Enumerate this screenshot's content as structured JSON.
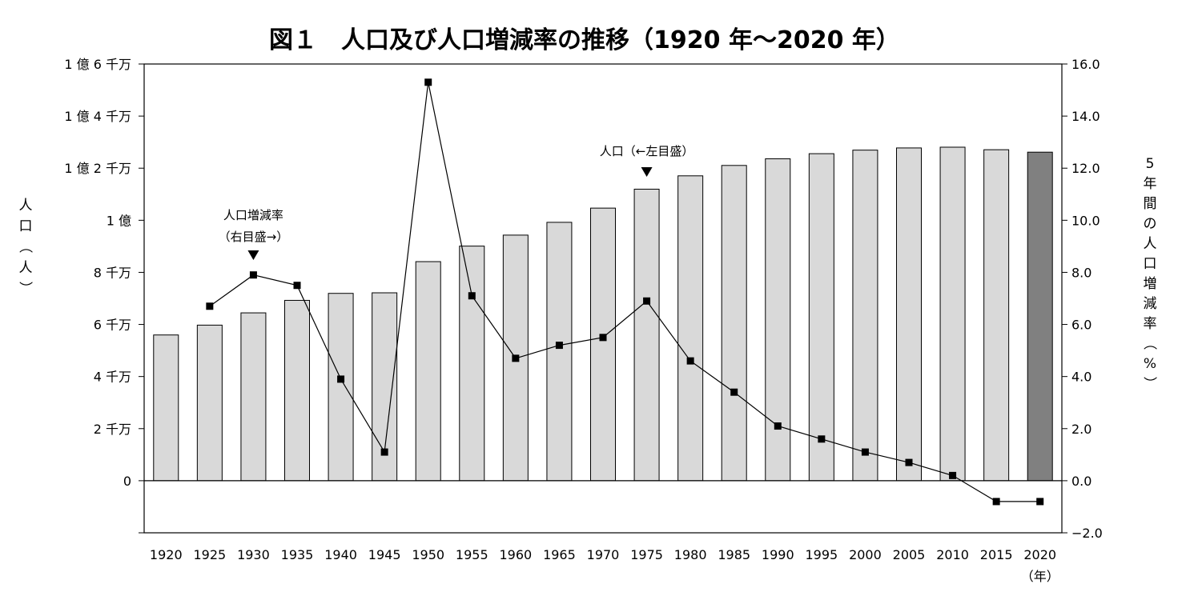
{
  "chart_data": {
    "type": "bar+line",
    "title": "図１　人口及び人口増減率の推移（1920 年～2020 年）",
    "x_unit": "（年）",
    "left_axis": {
      "label": "人口（人）",
      "ylim": [
        -20000000,
        160000000
      ],
      "ticks": [
        {
          "value": 0,
          "label": "0"
        },
        {
          "value": 20000000,
          "label": "2 千万"
        },
        {
          "value": 40000000,
          "label": "4 千万"
        },
        {
          "value": 60000000,
          "label": "6 千万"
        },
        {
          "value": 80000000,
          "label": "8 千万"
        },
        {
          "value": 100000000,
          "label": "1 億"
        },
        {
          "value": 120000000,
          "label": "1 億 2 千万"
        },
        {
          "value": 140000000,
          "label": "1 億 4 千万"
        },
        {
          "value": 160000000,
          "label": "1 億 6 千万"
        }
      ]
    },
    "right_axis": {
      "label": "5年間の人口増減率（%）",
      "ylim": [
        -2.0,
        16.0
      ],
      "ticks": [
        "-2.0",
        "0.0",
        "2.0",
        "4.0",
        "6.0",
        "8.0",
        "10.0",
        "12.0",
        "14.0",
        "16.0"
      ]
    },
    "categories": [
      "1920",
      "1925",
      "1930",
      "1935",
      "1940",
      "1945",
      "1950",
      "1955",
      "1960",
      "1965",
      "1970",
      "1975",
      "1980",
      "1985",
      "1990",
      "1995",
      "2000",
      "2005",
      "2010",
      "2015",
      "2020"
    ],
    "series": [
      {
        "name": "人口",
        "type": "bar",
        "axis": "left",
        "values": [
          55960000,
          59740000,
          64450000,
          69250000,
          71930000,
          72150000,
          84120000,
          90080000,
          94300000,
          99210000,
          104670000,
          111940000,
          117060000,
          121050000,
          123610000,
          125570000,
          126930000,
          127770000,
          128060000,
          127090000,
          126150000
        ],
        "color": "#d9d9d9",
        "highlight_color": "#808080",
        "highlight_index": 20
      },
      {
        "name": "人口増減率",
        "type": "line",
        "axis": "right",
        "values": [
          null,
          6.7,
          7.9,
          7.5,
          3.9,
          1.1,
          15.3,
          7.1,
          4.7,
          5.2,
          5.5,
          6.9,
          4.6,
          3.4,
          2.1,
          1.6,
          1.1,
          0.7,
          0.2,
          -0.8,
          -0.8
        ],
        "color": "#000000"
      }
    ],
    "annotations": [
      {
        "lines": [
          "人口増減率",
          "（右目盛→）"
        ],
        "category": "1930"
      },
      {
        "lines": [
          "人口（←左目盛）"
        ],
        "category": "1975"
      }
    ]
  }
}
